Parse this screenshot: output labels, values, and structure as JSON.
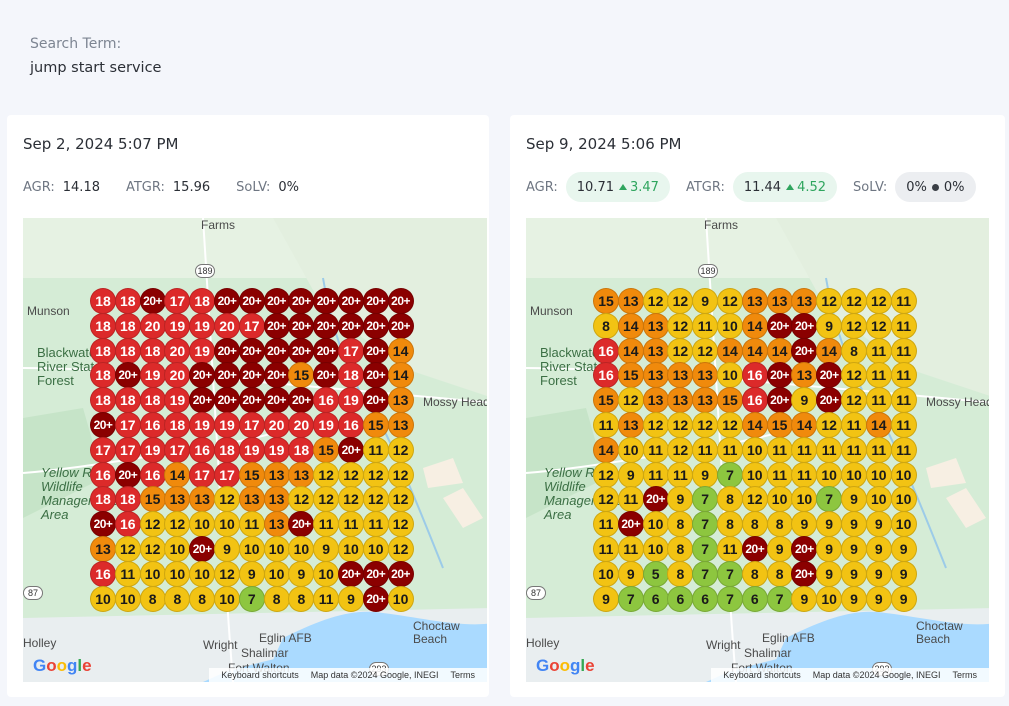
{
  "search": {
    "label": "Search Term:",
    "value": "jump start service"
  },
  "colors": {
    "darkred": "#8b0000",
    "red": "#dc2a2a",
    "orange": "#f08a0c",
    "yellow": "#f2c313",
    "green": "#8dc63f"
  },
  "cards": [
    {
      "date": "Sep 2, 2024 5:07 PM",
      "agr_label": "AGR:",
      "agr": "14.18",
      "atgr_label": "ATGR:",
      "atgr": "15.96",
      "solv_label": "SoLV:",
      "solv": "0%",
      "grid": [
        [
          "18",
          "18",
          "20+",
          "17",
          "18",
          "20+",
          "20+",
          "20+",
          "20+",
          "20+",
          "20+",
          "20+",
          "20+"
        ],
        [
          "18",
          "18",
          "20",
          "19",
          "19",
          "20",
          "17",
          "20+",
          "20+",
          "20+",
          "20+",
          "20+",
          "20+"
        ],
        [
          "18",
          "18",
          "18",
          "20",
          "19",
          "20+",
          "20+",
          "20+",
          "20+",
          "20+",
          "17",
          "20+",
          "14"
        ],
        [
          "18",
          "20+",
          "19",
          "20",
          "20+",
          "20+",
          "20+",
          "20+",
          "15",
          "20+",
          "18",
          "20+",
          "14"
        ],
        [
          "18",
          "18",
          "18",
          "19",
          "20+",
          "20+",
          "20+",
          "20+",
          "20+",
          "16",
          "19",
          "20+",
          "13"
        ],
        [
          "20+",
          "17",
          "16",
          "18",
          "19",
          "19",
          "17",
          "20",
          "20",
          "19",
          "16",
          "15",
          "13"
        ],
        [
          "17",
          "17",
          "19",
          "17",
          "16",
          "18",
          "19",
          "19",
          "18",
          "15",
          "20+",
          "11",
          "12"
        ],
        [
          "16",
          "20+",
          "16",
          "14",
          "17",
          "17",
          "15",
          "13",
          "13",
          "12",
          "12",
          "12",
          "12"
        ],
        [
          "18",
          "18",
          "15",
          "13",
          "13",
          "12",
          "13",
          "13",
          "12",
          "12",
          "12",
          "12",
          "12"
        ],
        [
          "20+",
          "16",
          "12",
          "12",
          "10",
          "10",
          "11",
          "13",
          "20+",
          "11",
          "11",
          "11",
          "12"
        ],
        [
          "13",
          "12",
          "12",
          "10",
          "20+",
          "9",
          "10",
          "10",
          "10",
          "9",
          "10",
          "10",
          "12"
        ],
        [
          "16",
          "11",
          "10",
          "10",
          "10",
          "12",
          "9",
          "10",
          "9",
          "10",
          "20+",
          "20+",
          "20+"
        ],
        [
          "10",
          "10",
          "8",
          "8",
          "8",
          "10",
          "7",
          "8",
          "8",
          "11",
          "9",
          "20+",
          "10"
        ]
      ]
    },
    {
      "date": "Sep 9, 2024 5:06 PM",
      "agr_label": "AGR:",
      "agr": "10.71",
      "agr_delta": "3.47",
      "atgr_label": "ATGR:",
      "atgr": "11.44",
      "atgr_delta": "4.52",
      "solv_label": "SoLV:",
      "solv": "0%",
      "solv_delta": "0%",
      "grid": [
        [
          "15",
          "13",
          "12",
          "12",
          "9",
          "12",
          "13",
          "13",
          "13",
          "12",
          "12",
          "12",
          "11"
        ],
        [
          "8",
          "14",
          "13",
          "12",
          "11",
          "10",
          "14",
          "20+",
          "20+",
          "9",
          "12",
          "12",
          "11"
        ],
        [
          "16",
          "14",
          "13",
          "12",
          "12",
          "14",
          "14",
          "14",
          "20+",
          "14",
          "8",
          "11",
          "11"
        ],
        [
          "16",
          "15",
          "13",
          "13",
          "13",
          "10",
          "16",
          "20+",
          "13",
          "20+",
          "12",
          "11",
          "11"
        ],
        [
          "15",
          "12",
          "13",
          "13",
          "13",
          "15",
          "16",
          "20+",
          "9",
          "20+",
          "12",
          "11",
          "11"
        ],
        [
          "11",
          "13",
          "12",
          "12",
          "12",
          "12",
          "14",
          "15",
          "14",
          "12",
          "11",
          "14",
          "11"
        ],
        [
          "14",
          "10",
          "11",
          "12",
          "11",
          "11",
          "10",
          "11",
          "11",
          "11",
          "11",
          "11",
          "11"
        ],
        [
          "12",
          "9",
          "11",
          "11",
          "9",
          "7",
          "10",
          "11",
          "11",
          "10",
          "10",
          "10",
          "10"
        ],
        [
          "12",
          "11",
          "20+",
          "9",
          "7",
          "8",
          "12",
          "10",
          "10",
          "7",
          "9",
          "10",
          "10"
        ],
        [
          "11",
          "20+",
          "10",
          "8",
          "7",
          "8",
          "8",
          "8",
          "9",
          "9",
          "9",
          "9",
          "10"
        ],
        [
          "11",
          "11",
          "10",
          "8",
          "7",
          "11",
          "20+",
          "9",
          "20+",
          "9",
          "9",
          "9",
          "9"
        ],
        [
          "10",
          "9",
          "5",
          "8",
          "7",
          "7",
          "8",
          "8",
          "20+",
          "9",
          "9",
          "9",
          "9"
        ],
        [
          "9",
          "7",
          "6",
          "6",
          "6",
          "7",
          "6",
          "7",
          "9",
          "10",
          "9",
          "9",
          "9"
        ]
      ]
    }
  ],
  "map": {
    "labels": {
      "farms": "Farms",
      "munson": "Munson",
      "forest": [
        "Blackwater",
        "River State",
        "Forest"
      ],
      "refuge": [
        "Yellow River",
        "Wildlife",
        "Management",
        "Area"
      ],
      "mossy": "Mossy Head",
      "wright": "Wright",
      "eglin": "Eglin AFB",
      "shalimar": "Shalimar",
      "choctaw": [
        "Choctaw",
        "Beach"
      ],
      "ftwalton": "Fort Walton",
      "holley": "Holley"
    },
    "shields": {
      "hwy189": "189",
      "hwy87": "87",
      "hwy293": "293"
    },
    "attribution": {
      "shortcuts": "Keyboard shortcuts",
      "data": "Map data ©2024 Google, INEGI",
      "terms": "Terms"
    },
    "google": "Google"
  }
}
